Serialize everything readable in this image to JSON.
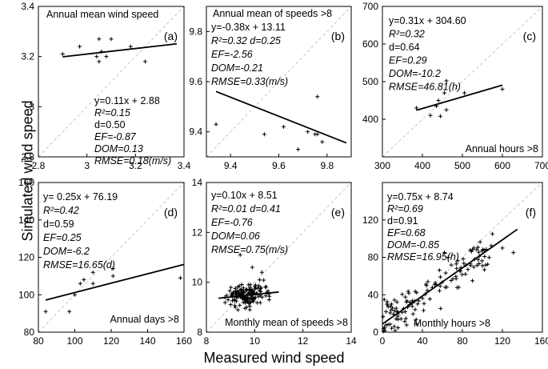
{
  "figure": {
    "ylabel": "Simulated  wind speed",
    "xlabel": "Measured wind speed"
  },
  "chart_data": [
    {
      "type": "scatter",
      "label": "(a)",
      "title": "Annual mean wind speed",
      "xlim": [
        2.8,
        3.4
      ],
      "ylim": [
        2.8,
        3.4
      ],
      "xticks": [
        2.8,
        3,
        3.2,
        3.4
      ],
      "xtick_labels": [
        "2.8",
        "3",
        "3.2",
        "3.4"
      ],
      "yticks": [
        2.8,
        3,
        3.2,
        3.4
      ],
      "ytick_labels": [
        "2.8",
        "3",
        "3.2",
        "3.4"
      ],
      "points": [
        [
          2.9,
          3.21
        ],
        [
          2.97,
          3.24
        ],
        [
          3.04,
          3.2
        ],
        [
          3.05,
          3.27
        ],
        [
          3.05,
          3.18
        ],
        [
          3.06,
          3.22
        ],
        [
          3.08,
          3.2
        ],
        [
          3.1,
          3.27
        ],
        [
          3.18,
          3.24
        ],
        [
          3.24,
          3.18
        ]
      ],
      "fit": {
        "slope": 0.11,
        "intercept": 2.88,
        "x_range": [
          2.9,
          3.37
        ]
      },
      "stats": [
        "y=0.11x + 2.88",
        "R²=0.15",
        "d=0.50",
        "EF=-0.87",
        "DOM=0.13",
        "RMSE=0.18(m/s)"
      ]
    },
    {
      "type": "scatter",
      "label": "(b)",
      "title": "Annual mean of speeds >8",
      "xlim": [
        9.3,
        9.9
      ],
      "ylim": [
        9.3,
        9.9
      ],
      "xticks": [
        9.4,
        9.6,
        9.8
      ],
      "xtick_labels": [
        "9.4",
        "9.6",
        "9.8"
      ],
      "yticks": [
        9.4,
        9.6,
        9.8
      ],
      "ytick_labels": [
        "9.4",
        "9.6",
        "9.8"
      ],
      "points": [
        [
          9.34,
          9.43
        ],
        [
          9.54,
          9.39
        ],
        [
          9.62,
          9.42
        ],
        [
          9.68,
          9.33
        ],
        [
          9.72,
          9.4
        ],
        [
          9.75,
          9.39
        ],
        [
          9.76,
          9.54
        ],
        [
          9.76,
          9.39
        ],
        [
          9.78,
          9.36
        ]
      ],
      "fit": {
        "slope": -0.38,
        "intercept": 13.11,
        "x_range": [
          9.34,
          9.88
        ]
      },
      "stats": [
        "y=-0.38x + 13.11",
        "R²=0.32 d=0.25",
        "EF=-2.56",
        "DOM=-0.21",
        "RMSE=0.33(m/s)"
      ]
    },
    {
      "type": "scatter",
      "label": "(c)",
      "title": "Annual hours >8",
      "xlim": [
        300,
        700
      ],
      "ylim": [
        300,
        700
      ],
      "xticks": [
        300,
        400,
        500,
        600,
        700
      ],
      "xtick_labels": [
        "300",
        "400",
        "500",
        "600",
        "700"
      ],
      "yticks": [
        400,
        500,
        600,
        700
      ],
      "ytick_labels": [
        "400",
        "500",
        "600",
        "700"
      ],
      "points": [
        [
          385,
          430
        ],
        [
          420,
          410
        ],
        [
          435,
          435
        ],
        [
          440,
          450
        ],
        [
          445,
          408
        ],
        [
          455,
          470
        ],
        [
          460,
          502
        ],
        [
          460,
          425
        ],
        [
          505,
          470
        ],
        [
          600,
          480
        ]
      ],
      "fit": {
        "slope": 0.31,
        "intercept": 304.6,
        "x_range": [
          385,
          600
        ]
      },
      "stats": [
        "y=0.31x + 304.60",
        "R²=0.32",
        "d=0.64",
        "EF=0.29",
        "DOM=-10.2",
        "RMSE=46.81(h)"
      ]
    },
    {
      "type": "scatter",
      "label": "(d)",
      "title": "Annual days >8",
      "xlim": [
        80,
        160
      ],
      "ylim": [
        80,
        160
      ],
      "xticks": [
        80,
        100,
        120,
        140,
        160
      ],
      "xtick_labels": [
        "80",
        "100",
        "120",
        "140",
        "160"
      ],
      "yticks": [
        80,
        100,
        120,
        140,
        160
      ],
      "ytick_labels": [
        "80",
        "100",
        "120",
        "140",
        "160"
      ],
      "points": [
        [
          84,
          91
        ],
        [
          97,
          91
        ],
        [
          100,
          100
        ],
        [
          103,
          106
        ],
        [
          105,
          108
        ],
        [
          110,
          112
        ],
        [
          110,
          106
        ],
        [
          121,
          110
        ],
        [
          121,
          114
        ],
        [
          158,
          109
        ]
      ],
      "fit": {
        "slope": 0.25,
        "intercept": 76.19,
        "x_range": [
          84,
          160
        ]
      },
      "stats": [
        "y= 0.25x + 76.19",
        "R²=0.42",
        "d=0.59",
        "EF=0.25",
        "DOM=-6.2",
        "RMSE=16.65(d)"
      ]
    },
    {
      "type": "scatter",
      "label": "(e)",
      "title": "Monthly mean of speeds >8",
      "xlim": [
        8,
        14
      ],
      "ylim": [
        8,
        14
      ],
      "xticks": [
        8,
        10,
        12,
        14
      ],
      "xtick_labels": [
        "8",
        "10",
        "12",
        "14"
      ],
      "yticks": [
        8,
        10,
        12,
        14
      ],
      "ytick_labels": [
        "8",
        "10",
        "12",
        "14"
      ],
      "cloud": {
        "count": 140,
        "x_mean": 9.7,
        "x_sd": 0.55,
        "y_mean": 9.55,
        "y_sd": 0.32,
        "seed": 7
      },
      "points": [
        [
          9.4,
          11.1
        ],
        [
          9.9,
          10.6
        ],
        [
          10.3,
          10.4
        ],
        [
          9.2,
          9.0
        ],
        [
          9.8,
          8.9
        ],
        [
          10.6,
          9.3
        ]
      ],
      "fit": {
        "slope": 0.1,
        "intercept": 8.51,
        "x_range": [
          8.5,
          11.0
        ]
      },
      "stats": [
        "y=0.10x + 8.51",
        "R²=0.01 d=0.41",
        "EF=-0.76",
        "DOM=0.06",
        "RMSE=0.75(m/s)"
      ]
    },
    {
      "type": "scatter",
      "label": "(f)",
      "title": "Monthly hours >8",
      "xlim": [
        0,
        160
      ],
      "ylim": [
        0,
        160
      ],
      "xticks": [
        0,
        40,
        80,
        120,
        160
      ],
      "xtick_labels": [
        "0",
        "40",
        "80",
        "120",
        "160"
      ],
      "yticks": [
        0,
        40,
        80,
        120
      ],
      "ytick_labels": [
        "0",
        "40",
        "80",
        "120"
      ],
      "cloud": {
        "count": 130,
        "x_max": 110,
        "slope": 0.72,
        "intercept": 10,
        "noise": 14,
        "seed": 11
      },
      "points": [
        [
          62,
          85
        ],
        [
          66,
          80
        ],
        [
          110,
          105
        ],
        [
          131,
          85
        ],
        [
          120,
          90
        ],
        [
          5,
          30
        ],
        [
          2,
          5
        ]
      ],
      "fit": {
        "slope": 0.75,
        "intercept": 8.74,
        "x_range": [
          0,
          135
        ]
      },
      "stats": [
        "y=0.75x + 8.74",
        "R²=0.69",
        "d=0.91",
        "EF=0.68",
        "DOM=-0.85",
        "RMSE=16.95(h)"
      ]
    }
  ]
}
